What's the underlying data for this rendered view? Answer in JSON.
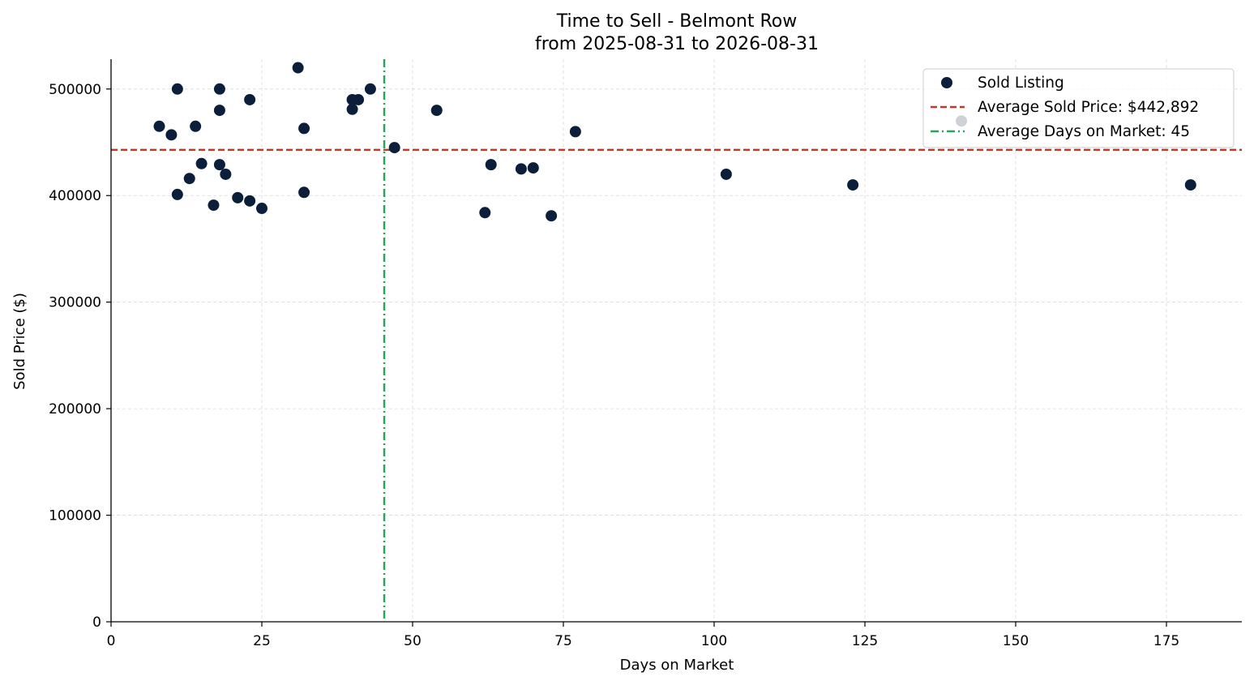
{
  "chart_data": {
    "type": "scatter",
    "title": "Time to Sell - Belmont Row",
    "subtitle": "from 2025-08-31 to 2026-08-31",
    "xlabel": "Days on Market",
    "ylabel": "Sold Price ($)",
    "xlim": [
      0,
      187.5
    ],
    "ylim": [
      0,
      528000
    ],
    "xticks": [
      0,
      25,
      50,
      75,
      100,
      125,
      150,
      175
    ],
    "yticks": [
      0,
      100000,
      200000,
      300000,
      400000,
      500000
    ],
    "grid": true,
    "legend_position": "top-right",
    "colors": {
      "points": "#0b1f3a",
      "avg_price_line": "#c0392b",
      "avg_days_line": "#27a55f"
    },
    "series": [
      {
        "name": "Sold Listing",
        "points": [
          {
            "x": 8,
            "y": 465000
          },
          {
            "x": 10,
            "y": 457000
          },
          {
            "x": 11,
            "y": 500000
          },
          {
            "x": 11,
            "y": 401000
          },
          {
            "x": 13,
            "y": 416000
          },
          {
            "x": 14,
            "y": 465000
          },
          {
            "x": 15,
            "y": 430000
          },
          {
            "x": 17,
            "y": 391000
          },
          {
            "x": 18,
            "y": 500000
          },
          {
            "x": 18,
            "y": 480000
          },
          {
            "x": 18,
            "y": 429000
          },
          {
            "x": 19,
            "y": 420000
          },
          {
            "x": 21,
            "y": 398000
          },
          {
            "x": 23,
            "y": 490000
          },
          {
            "x": 23,
            "y": 395000
          },
          {
            "x": 25,
            "y": 388000
          },
          {
            "x": 31,
            "y": 520000
          },
          {
            "x": 32,
            "y": 463000
          },
          {
            "x": 32,
            "y": 403000
          },
          {
            "x": 40,
            "y": 490000
          },
          {
            "x": 40,
            "y": 481000
          },
          {
            "x": 41,
            "y": 490000
          },
          {
            "x": 43,
            "y": 500000
          },
          {
            "x": 47,
            "y": 445000
          },
          {
            "x": 54,
            "y": 480000
          },
          {
            "x": 62,
            "y": 384000
          },
          {
            "x": 63,
            "y": 429000
          },
          {
            "x": 68,
            "y": 425000
          },
          {
            "x": 70,
            "y": 426000
          },
          {
            "x": 73,
            "y": 381000
          },
          {
            "x": 77,
            "y": 460000
          },
          {
            "x": 102,
            "y": 420000
          },
          {
            "x": 123,
            "y": 410000
          },
          {
            "x": 141,
            "y": 470000
          },
          {
            "x": 179,
            "y": 410000
          }
        ]
      }
    ],
    "reference_lines": [
      {
        "name": "Average Sold Price: $442,892",
        "orientation": "horizontal",
        "value": 442892,
        "style": "dashed"
      },
      {
        "name": "Average Days on Market: 45",
        "orientation": "vertical",
        "value": 45.3,
        "style": "dashdot"
      }
    ],
    "legend": [
      "Sold Listing",
      "Average Sold Price: $442,892",
      "Average Days on Market: 45"
    ]
  }
}
